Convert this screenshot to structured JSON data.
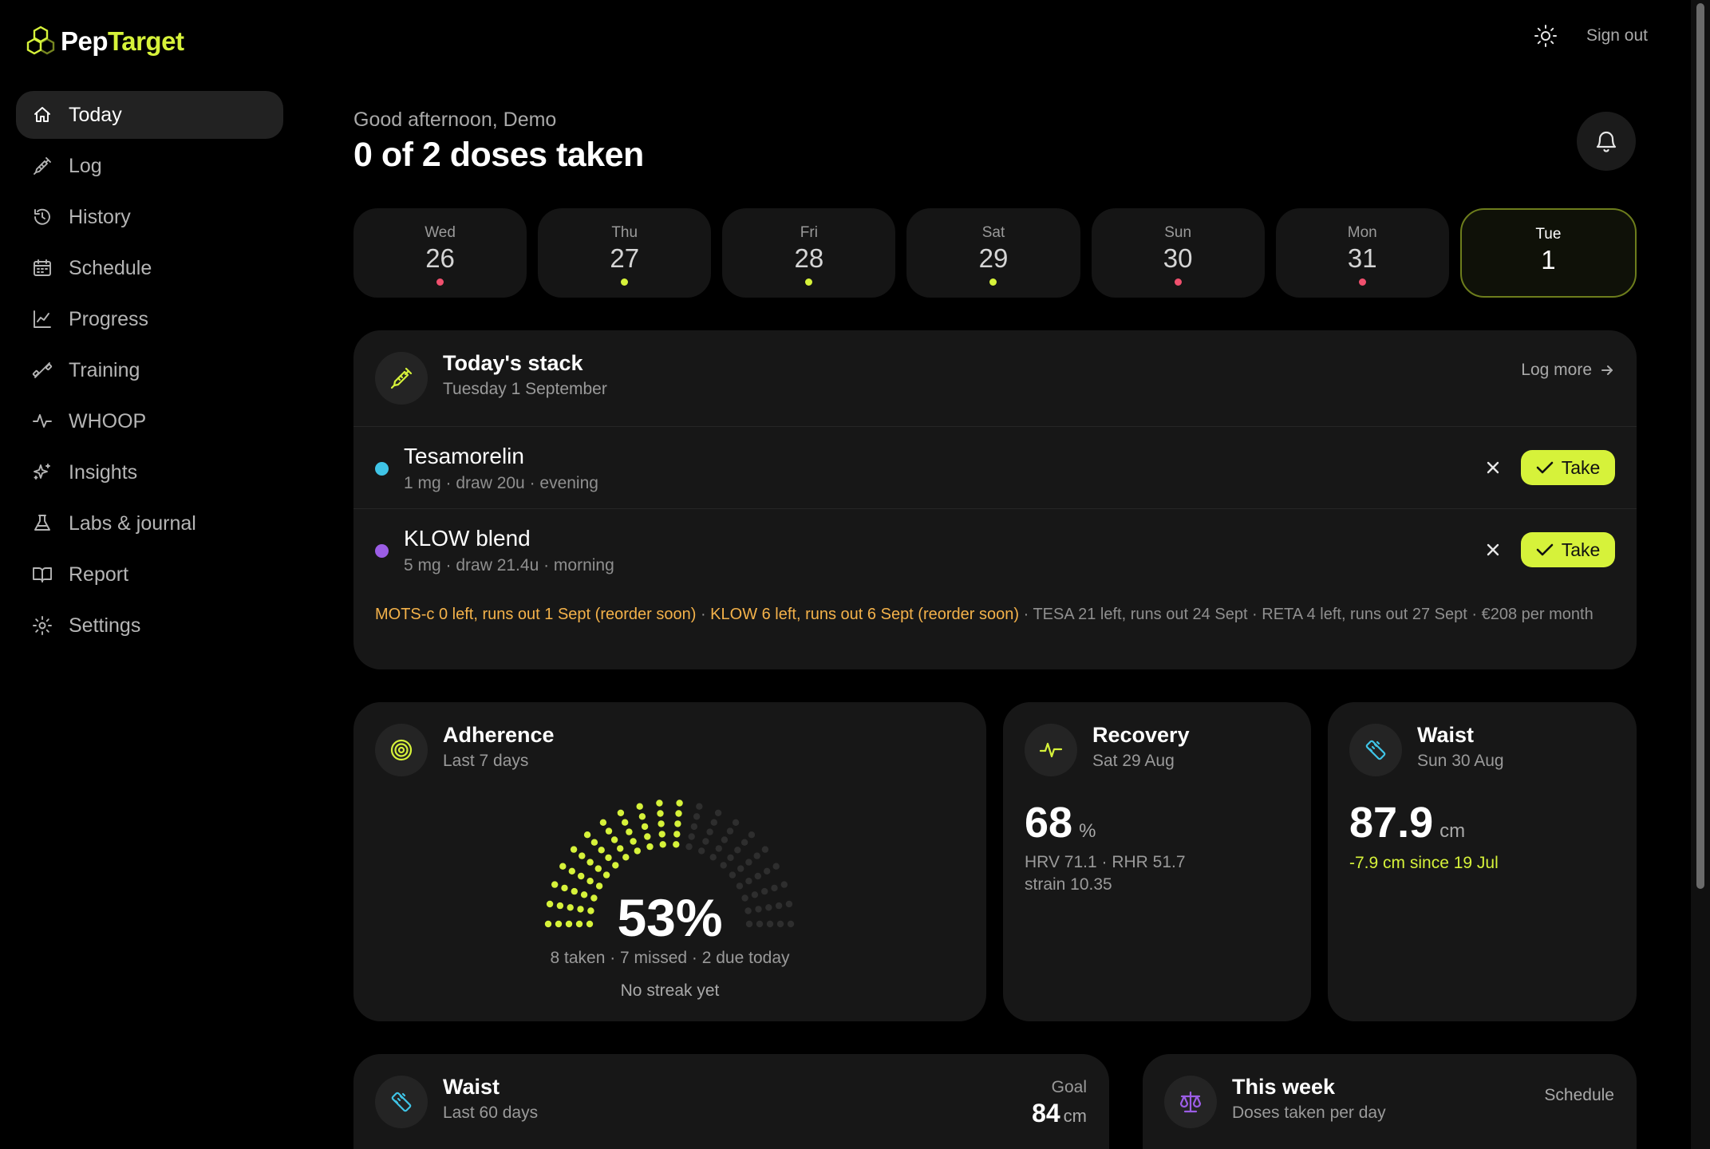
{
  "app": {
    "brand_a": "Pep",
    "brand_b": "Target",
    "accent": "#d6f23a"
  },
  "header": {
    "signout": "Sign out"
  },
  "sidebar": {
    "items": [
      {
        "label": "Today",
        "icon": "home-icon",
        "active": true
      },
      {
        "label": "Log",
        "icon": "syringe-icon"
      },
      {
        "label": "History",
        "icon": "history-icon"
      },
      {
        "label": "Schedule",
        "icon": "calendar-icon"
      },
      {
        "label": "Progress",
        "icon": "chart-line-icon"
      },
      {
        "label": "Training",
        "icon": "dumbbell-icon"
      },
      {
        "label": "WHOOP",
        "icon": "pulse-icon"
      },
      {
        "label": "Insights",
        "icon": "sparkles-icon"
      },
      {
        "label": "Labs & journal",
        "icon": "flask-icon"
      },
      {
        "label": "Report",
        "icon": "book-icon"
      },
      {
        "label": "Settings",
        "icon": "gear-icon"
      }
    ]
  },
  "main": {
    "greeting": "Good afternoon, Demo",
    "headline": "0 of 2 doses taken",
    "days": [
      {
        "name": "Wed",
        "num": "26",
        "dot": "#f0506e"
      },
      {
        "name": "Thu",
        "num": "27",
        "dot": "#d6f23a"
      },
      {
        "name": "Fri",
        "num": "28",
        "dot": "#d6f23a"
      },
      {
        "name": "Sat",
        "num": "29",
        "dot": "#d6f23a"
      },
      {
        "name": "Sun",
        "num": "30",
        "dot": "#f0506e"
      },
      {
        "name": "Mon",
        "num": "31",
        "dot": "#f0506e"
      },
      {
        "name": "Tue",
        "num": "1",
        "dot": "",
        "selected": true
      }
    ]
  },
  "stack": {
    "title": "Today's stack",
    "date": "Tuesday 1 September",
    "log_more": "Log more",
    "doses": [
      {
        "name": "Tesamorelin",
        "detail": "1 mg · draw 20u · evening",
        "color": "#3fc4e6",
        "take": "Take"
      },
      {
        "name": "KLOW blend",
        "detail": "5 mg · draw 21.4u · morning",
        "color": "#9b5de5",
        "take": "Take"
      }
    ],
    "inventory": {
      "warn1": "MOTS-c 0 left, runs out 1 Sept (reorder soon)",
      "sep1": " · ",
      "warn2": "KLOW 6 left, runs out 6 Sept (reorder soon)",
      "rest": " · TESA 21 left, runs out 24 Sept · RETA 4 left, runs out 27 Sept · €208 per month"
    }
  },
  "adherence": {
    "title": "Adherence",
    "sub": "Last 7 days",
    "percent": "53%",
    "percent_value": 53,
    "stats": "8 taken · 7 missed · 2 due today",
    "streak": "No streak yet"
  },
  "recovery": {
    "title": "Recovery",
    "sub": "Sat 29 Aug",
    "value": "68",
    "unit": "%",
    "line1": "HRV 71.1 · RHR 51.7",
    "line2": "strain 10.35"
  },
  "waist": {
    "title": "Waist",
    "sub": "Sun 30 Aug",
    "value": "87.9",
    "unit": "cm",
    "delta": "-7.9 cm since 19 Jul"
  },
  "waist_trend": {
    "title": "Waist",
    "sub": "Last 60 days",
    "goal_label": "Goal",
    "goal_value": "84",
    "goal_unit": "cm"
  },
  "this_week": {
    "title": "This week",
    "sub": "Doses taken per day",
    "link": "Schedule"
  }
}
